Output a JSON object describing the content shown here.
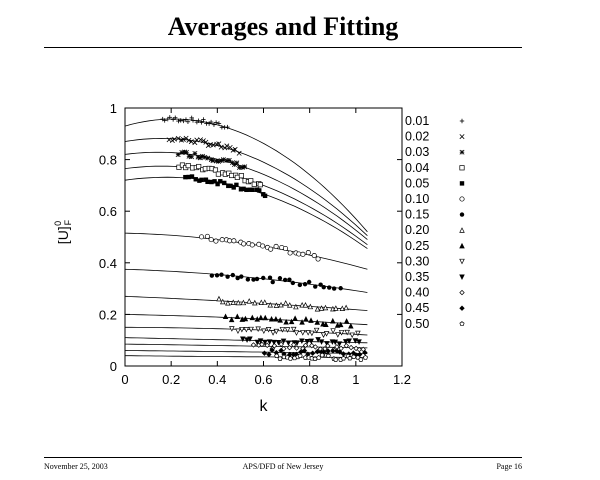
{
  "title": "Averages and Fitting",
  "footer": {
    "date": "November 25, 2003",
    "event": "APS/DFD of New Jersey",
    "page": "Page 16"
  },
  "chart_data": {
    "type": "scatter",
    "title": "",
    "xlabel": "k",
    "ylabel": "[U]",
    "ylabel_superscript": "0",
    "ylabel_subscript": "F",
    "xlim": [
      0,
      1.2
    ],
    "ylim": [
      0,
      1
    ],
    "xticks": [
      "0",
      "0.2",
      "0.4",
      "0.6",
      "0.8",
      "1",
      "1.2"
    ],
    "yticks": [
      "0",
      "0.2",
      "0.4",
      "0.6",
      "0.8",
      "1"
    ],
    "grid": false,
    "legend_position": "right, outside plot",
    "fit_lines_x_range": [
      0,
      1.05
    ],
    "series": [
      {
        "name": "0.01",
        "marker": "plus",
        "x_range": [
          0.16,
          0.45
        ],
        "fit": [
          0.93,
          0.905,
          0.52
        ]
      },
      {
        "name": "0.02",
        "marker": "cross",
        "x_range": [
          0.19,
          0.5
        ],
        "fit": [
          0.87,
          0.827,
          0.505
        ]
      },
      {
        "name": "0.03",
        "marker": "star",
        "x_range": [
          0.23,
          0.53
        ],
        "fit": [
          0.82,
          0.776,
          0.49
        ]
      },
      {
        "name": "0.04",
        "marker": "open-square",
        "x_range": [
          0.23,
          0.6
        ],
        "fit": [
          0.765,
          0.73,
          0.47
        ]
      },
      {
        "name": "0.05",
        "marker": "filled-square",
        "x_range": [
          0.26,
          0.62
        ],
        "fit": [
          0.72,
          0.694,
          0.455
        ]
      },
      {
        "name": "0.10",
        "marker": "open-circle",
        "x_range": [
          0.33,
          0.85
        ],
        "fit": [
          0.515,
          0.478,
          0.375
        ]
      },
      {
        "name": "0.15",
        "marker": "filled-circle",
        "x_range": [
          0.37,
          0.95
        ],
        "fit": [
          0.375,
          0.347,
          0.285
        ]
      },
      {
        "name": "0.20",
        "marker": "open-triangle",
        "x_range": [
          0.4,
          0.98
        ],
        "fit": [
          0.27,
          0.248,
          0.215
        ]
      },
      {
        "name": "0.25",
        "marker": "filled-triangle",
        "x_range": [
          0.43,
          1.0
        ],
        "fit": [
          0.2,
          0.186,
          0.16
        ]
      },
      {
        "name": "0.30",
        "marker": "open-inverted-triangle",
        "x_range": [
          0.46,
          1.02
        ],
        "fit": [
          0.15,
          0.142,
          0.12
        ]
      },
      {
        "name": "0.35",
        "marker": "filled-inverted-triangle",
        "x_range": [
          0.5,
          1.03
        ],
        "fit": [
          0.11,
          0.1,
          0.09
        ]
      },
      {
        "name": "0.40",
        "marker": "open-diamond",
        "x_range": [
          0.55,
          1.05
        ],
        "fit": [
          0.085,
          0.078,
          0.07
        ]
      },
      {
        "name": "0.45",
        "marker": "filled-diamond",
        "x_range": [
          0.6,
          1.05
        ],
        "fit": [
          0.06,
          0.055,
          0.048
        ]
      },
      {
        "name": "0.50",
        "marker": "open-pentagon",
        "x_range": [
          0.65,
          1.05
        ],
        "fit": [
          0.04,
          0.036,
          0.033
        ]
      }
    ]
  }
}
